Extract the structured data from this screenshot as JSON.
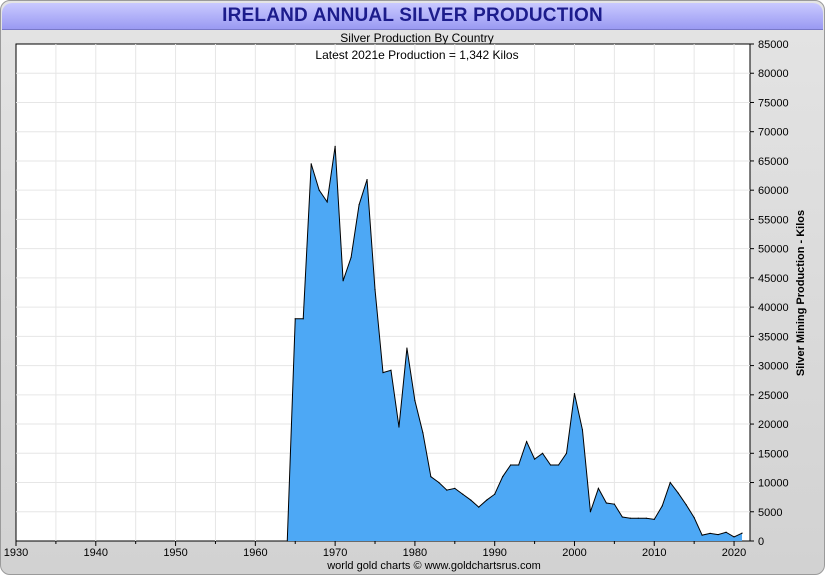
{
  "header": {
    "title": "IRELAND ANNUAL SILVER PRODUCTION"
  },
  "footer": {
    "credit": "world gold charts © www.goldchartsrus.com"
  },
  "colors": {
    "area_fill": "#4da8f5",
    "area_stroke": "#000000",
    "title_text": "#1c1c8c"
  },
  "chart_data": {
    "type": "area",
    "title": "IRELAND ANNUAL SILVER PRODUCTION",
    "subtitle": "Silver Production By Country",
    "annotation": "Latest 2021e Production = 1,342 Kilos",
    "xlabel": "",
    "ylabel": "Silver Mining Production - Kilos",
    "xlim": [
      1930,
      2022
    ],
    "ylim": [
      0,
      85000
    ],
    "x_ticks": [
      1930,
      1940,
      1950,
      1960,
      1970,
      1980,
      1990,
      2000,
      2010,
      2020
    ],
    "y_ticks": [
      0,
      5000,
      10000,
      15000,
      20000,
      25000,
      30000,
      35000,
      40000,
      45000,
      50000,
      55000,
      60000,
      65000,
      70000,
      75000,
      80000,
      85000
    ],
    "grid": true,
    "series": [
      {
        "name": "Ireland",
        "x": [
          1964,
          1965,
          1966,
          1967,
          1968,
          1969,
          1970,
          1971,
          1972,
          1973,
          1974,
          1975,
          1976,
          1977,
          1978,
          1979,
          1980,
          1981,
          1982,
          1983,
          1984,
          1985,
          1986,
          1987,
          1988,
          1989,
          1990,
          1991,
          1992,
          1993,
          1994,
          1995,
          1996,
          1997,
          1998,
          1999,
          2000,
          2001,
          2002,
          2003,
          2004,
          2005,
          2006,
          2007,
          2008,
          2009,
          2010,
          2011,
          2012,
          2013,
          2014,
          2015,
          2016,
          2017,
          2018,
          2019,
          2020,
          2021
        ],
        "values": [
          0,
          38000,
          38000,
          64500,
          60000,
          58000,
          67500,
          44500,
          48500,
          57500,
          61800,
          43000,
          28800,
          29200,
          19500,
          33000,
          24000,
          18500,
          11000,
          10000,
          8700,
          9000,
          8000,
          7000,
          5800,
          7000,
          8000,
          11000,
          13000,
          13000,
          17000,
          14000,
          15000,
          13000,
          13000,
          15000,
          25200,
          19000,
          5000,
          9000,
          6500,
          6300,
          4100,
          3900,
          3900,
          3900,
          3700,
          6000,
          10000,
          8200,
          6200,
          4000,
          1000,
          1300,
          1100,
          1500,
          700,
          1342
        ]
      }
    ]
  }
}
